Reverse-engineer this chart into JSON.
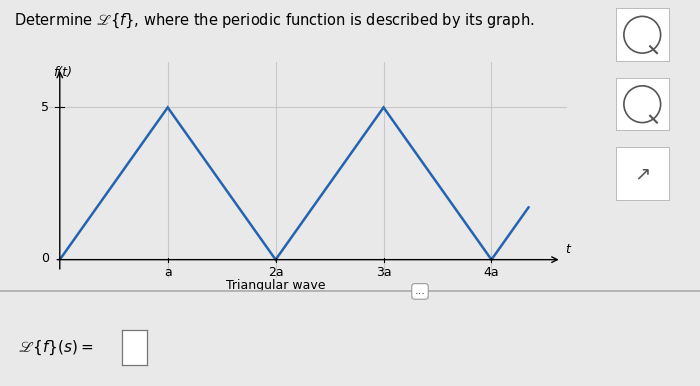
{
  "title": "Determine $\\mathscr{L}\\{f\\}$, where the periodic function is described by its graph.",
  "ylabel": "f(t)",
  "t_label": "t",
  "xlabel_label": "Triangular wave",
  "x_tick_labels": [
    "a",
    "2a",
    "3a",
    "4a"
  ],
  "x_tick_positions": [
    1,
    2,
    3,
    4
  ],
  "y_tick_label": "5",
  "y_tick_position": 5,
  "wave_x": [
    0,
    1,
    2,
    3,
    4,
    4.35
  ],
  "wave_y": [
    0,
    5,
    0,
    5,
    0,
    1.75
  ],
  "line_color": "#2563B0",
  "line_width": 1.8,
  "xlim": [
    -0.1,
    4.7
  ],
  "ylim": [
    -0.6,
    6.5
  ],
  "background_color": "#E9E9E9",
  "grid_color": "#C8C8C8",
  "vline_positions": [
    1,
    2,
    3,
    4
  ],
  "hline_y": 5,
  "footer_label": "$\\mathscr{L}\\{f\\}(s) =$",
  "dots_text": "...",
  "separator_color": "#AAAAAA",
  "footer_bg": "#DCDCDC"
}
